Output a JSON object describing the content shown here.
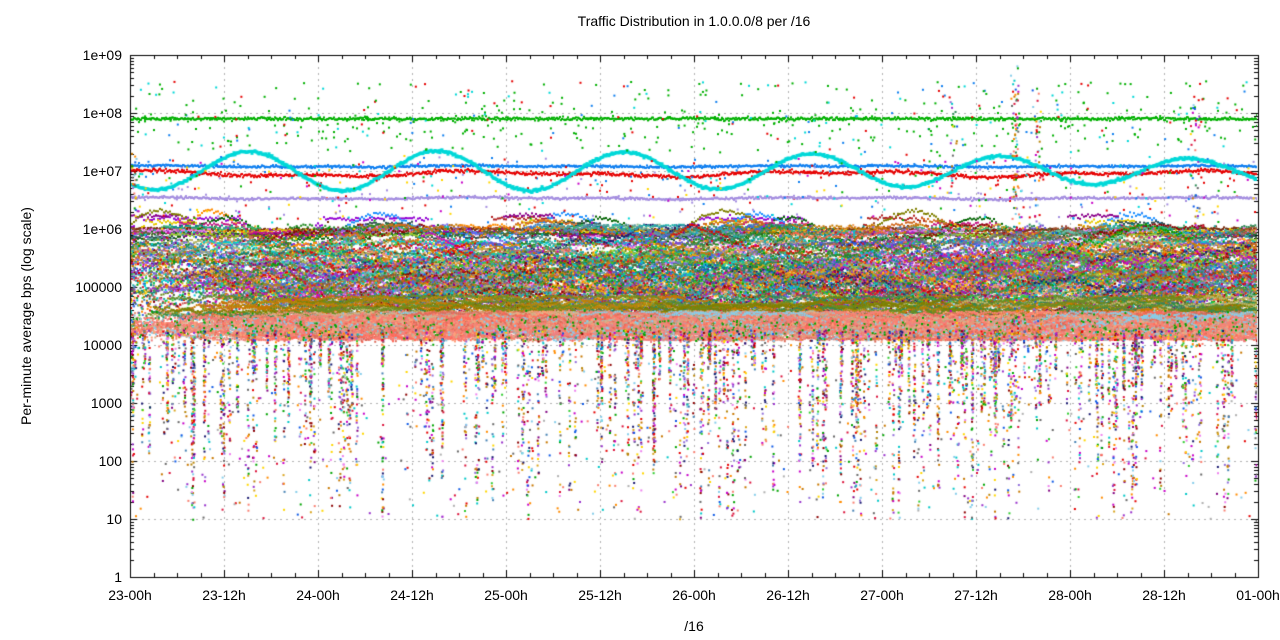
{
  "chart_data": {
    "type": "scatter",
    "title": "Traffic Distribution in 1.0.0.0/8 per /16",
    "xlabel": "/16",
    "ylabel": "Per-minute average bps (log scale)",
    "y_scale": "log",
    "ylim": [
      1,
      1000000000
    ],
    "y_ticks": [
      "1e+09",
      "1e+08",
      "1e+07",
      "1e+06",
      "100000",
      "10000",
      "1000",
      "100",
      "10",
      "1"
    ],
    "y_tick_exponents": [
      9,
      8,
      7,
      6,
      5,
      4,
      3,
      2,
      1,
      0
    ],
    "x_ticks": [
      "23-00h",
      "23-12h",
      "24-00h",
      "24-12h",
      "25-00h",
      "25-12h",
      "26-00h",
      "26-12h",
      "27-00h",
      "27-12h",
      "28-00h",
      "28-12h",
      "01-00h"
    ],
    "x_minor_per_major": 4,
    "grid": true,
    "grid_color": "#b4b4b4",
    "border_color": "#000000",
    "background": "#ffffff",
    "legend": "none",
    "summary_levels_bps": {
      "steady_green_line": 80000000,
      "steady_blue_line": 12000000,
      "wandering_red_line": 9000000,
      "diurnal_cyan_wave_min": 5000000,
      "diurnal_cyan_wave_max": 22000000,
      "steady_purple_line": 3400000,
      "dense_band_range": [
        40000,
        1200000
      ],
      "salmon_band_center": 20000,
      "sparse_trails_range": [
        10,
        10000
      ]
    },
    "series": [
      {
        "name": "green-steady-80M",
        "kind": "hline",
        "level_log": 7.9,
        "jitter": 0.014,
        "wander": 0.0,
        "color": "#00b000",
        "size": 2,
        "fuzz_below": 0.06,
        "fuzz_depth": 0.4
      },
      {
        "name": "blue-steady-12M",
        "kind": "hline",
        "level_log": 7.08,
        "jitter": 0.011,
        "wander": 0.015,
        "color": "#0f7ff0",
        "size": 2,
        "fuzz_below": 0.02,
        "fuzz_depth": 0.3
      },
      {
        "name": "red-wander-9M",
        "kind": "hline",
        "level_log": 6.95,
        "jitter": 0.016,
        "wander": 0.06,
        "color": "#e60000",
        "size": 2,
        "fuzz_below": 0.04,
        "fuzz_depth": 0.5
      },
      {
        "name": "purple-steady-3.4M",
        "kind": "hline",
        "level_log": 6.53,
        "jitter": 0.011,
        "wander": 0.02,
        "color": "#a58fe0",
        "size": 2,
        "fuzz_below": 0.02,
        "fuzz_depth": 0.35
      },
      {
        "name": "maroon-steady-1M",
        "kind": "hline",
        "level_log": 5.99,
        "jitter": 0.013,
        "wander": 0.02,
        "color": "#7b3010",
        "size": 2,
        "fuzz_below": 0.02,
        "fuzz_depth": 0.3
      },
      {
        "name": "darkgreen-steady-850k",
        "kind": "hline",
        "level_log": 5.92,
        "jitter": 0.013,
        "wander": 0.02,
        "color": "#1a6b1a",
        "size": 2,
        "fuzz_below": 0.02,
        "fuzz_depth": 0.3
      },
      {
        "name": "cyan-diurnal-wave",
        "kind": "wave",
        "center_log": 7.0,
        "amp_log": 0.31,
        "clip_high_log": 7.35,
        "period_frac": 0.1667,
        "phase": 0.62,
        "jitter": 0.012,
        "color": "#00d8d8",
        "size": 3
      },
      {
        "name": "upper-step-series",
        "kind": "steps",
        "count": 11,
        "base_log_range": [
          5.78,
          6.02
        ],
        "peak_log_range": [
          6.08,
          6.33
        ],
        "day_active_prob": 0.55,
        "period_frac": 0.1667,
        "palette": [
          "#9400d3",
          "#b22222",
          "#e6c800",
          "#ff8c00",
          "#006400",
          "#1e90ff",
          "#8b008b",
          "#c71585",
          "#2f4f4f",
          "#808000",
          "#d2691e"
        ]
      },
      {
        "name": "band-step-series",
        "kind": "steps",
        "count": 26,
        "base_log_range": [
          4.85,
          5.75
        ],
        "peak_log_range": [
          5.35,
          6.05
        ],
        "day_active_prob": 0.85,
        "period_frac": 0.1667,
        "palette": [
          "#9932cc",
          "#228b22",
          "#4169e1",
          "#20b2aa",
          "#ff8c00",
          "#b8860b",
          "#dc143c",
          "#008b8b",
          "#9370db",
          "#556b2f",
          "#800080",
          "#2e8b57",
          "#cd5c5c",
          "#4682b4",
          "#daa520",
          "#5f9ea0",
          "#7b68ee",
          "#3cb371",
          "#bdb76b",
          "#e9967a",
          "#66cdaa",
          "#9acd32",
          "#ee82ee",
          "#00ced1",
          "#6a5acd",
          "#a0522d"
        ]
      },
      {
        "name": "band-noise-walkers",
        "kind": "walkers",
        "count": 430,
        "center_log": 5.12,
        "sigma": 0.4,
        "clip": [
          4.28,
          6.08
        ],
        "step": 0.05,
        "len_range": [
          40,
          120
        ],
        "palette": [
          "#e60000",
          "#00a400",
          "#0f5ae6",
          "#c800c8",
          "#00c8c8",
          "#c87800",
          "#8b0000",
          "#228b22",
          "#4169e1",
          "#9932cc",
          "#20b2aa",
          "#ff8c00",
          "#b8860b",
          "#6b8e23",
          "#dc143c",
          "#008b8b",
          "#9370db",
          "#556b2f",
          "#800080",
          "#2e8b57",
          "#cd5c5c",
          "#4682b4",
          "#d2691e",
          "#daa520",
          "#5f9ea0",
          "#7b68ee",
          "#ff6347",
          "#3cb371",
          "#bdb76b",
          "#8fbc8f",
          "#66cdaa",
          "#9acd32",
          "#f4a460",
          "#778899",
          "#ee82ee",
          "#00ced1",
          "#ffa500",
          "#6a5acd",
          "#a0522d",
          "#708090",
          "#32cd32",
          "#b22222",
          "#191970",
          "#696969"
        ]
      },
      {
        "name": "band-noise-cloud",
        "kind": "cloud",
        "count": 9000,
        "center_log": 5.1,
        "sigma": 0.45,
        "clip": [
          4.3,
          6.05
        ],
        "palette": [
          "#e60000",
          "#00a400",
          "#0f5ae6",
          "#c800c8",
          "#00c8c8",
          "#c87800",
          "#8b0000",
          "#228b22",
          "#4169e1",
          "#9932cc",
          "#20b2aa",
          "#ff8c00",
          "#b8860b",
          "#6b8e23",
          "#dc143c",
          "#008b8b",
          "#9370db",
          "#556b2f",
          "#800080",
          "#2e8b57",
          "#cd5c5c",
          "#4682b4",
          "#d2691e",
          "#daa520",
          "#ee82ee",
          "#00ced1",
          "#32cd32",
          "#ffd700"
        ]
      },
      {
        "name": "olive-streak-band",
        "kind": "walkers",
        "count": 90,
        "center_log": 4.62,
        "sigma": 0.08,
        "clip": [
          4.45,
          4.85
        ],
        "step": 0.03,
        "len_range": [
          60,
          160
        ],
        "palette": [
          "#b8860b",
          "#bdb76b",
          "#808000",
          "#6b8e23",
          "#c87800",
          "#2e8b57"
        ]
      },
      {
        "name": "salmon-band-walkers",
        "kind": "walkers",
        "count": 280,
        "center_log": 4.32,
        "sigma": 0.1,
        "clip": [
          4.08,
          4.58
        ],
        "step": 0.03,
        "len_range": [
          60,
          160
        ],
        "palette": [
          "#fa8072",
          "#fa8072",
          "#fa8072",
          "#f08080",
          "#e9967a",
          "#ff6a5a",
          "#87ceeb",
          "#87ceeb",
          "#d2b48c",
          "#dc6b5a",
          "#ffa07a",
          "#a9a9a9"
        ]
      },
      {
        "name": "salmon-band-cloud",
        "kind": "cloud",
        "count": 6000,
        "center_log": 4.3,
        "sigma": 0.11,
        "clip": [
          4.05,
          4.6
        ],
        "palette": [
          "#fa8072",
          "#fa8072",
          "#f08080",
          "#e9967a",
          "#87ceeb",
          "#d2b48c",
          "#ff6a5a",
          "#dc6b5a",
          "#00a400",
          "#ffa07a"
        ]
      },
      {
        "name": "downward-trails",
        "kind": "trails",
        "count": 280,
        "top_log": 4.25,
        "min_log": 0.95,
        "points_range": [
          8,
          42
        ],
        "palette": [
          "#e60000",
          "#00a400",
          "#0f5ae6",
          "#c800c8",
          "#00c8c8",
          "#c87800",
          "#8b0000",
          "#9932cc",
          "#ff8c00",
          "#b8860b",
          "#dc143c",
          "#9370db",
          "#800080",
          "#4682b4",
          "#daa520",
          "#ee82ee",
          "#32cd32",
          "#ffd700",
          "#191970",
          "#696969",
          "#87ceeb",
          "#fa8072"
        ]
      },
      {
        "name": "low-sparse-dots",
        "kind": "sparse",
        "count": 620,
        "log_min": 1.0,
        "log_max": 4.1,
        "palette": [
          "#e60000",
          "#00a400",
          "#0f5ae6",
          "#c800c8",
          "#00c8c8",
          "#c87800",
          "#9932cc",
          "#ff8c00",
          "#dc143c",
          "#87ceeb",
          "#ffd700",
          "#696969",
          "#b0b0b0",
          "#fa8072"
        ]
      },
      {
        "name": "top-sparse-dots",
        "kind": "sparse",
        "count": 430,
        "log_min": 7.32,
        "log_max": 8.55,
        "palette": [
          "#00b000",
          "#00b000",
          "#00b000",
          "#00b000",
          "#00b000",
          "#00d8d8",
          "#e60000",
          "#0f7ff0"
        ]
      },
      {
        "name": "mid-gap-sparse-dots",
        "kind": "sparse",
        "count": 330,
        "log_min": 6.1,
        "log_max": 7.3,
        "palette": [
          "#e60000",
          "#00b000",
          "#0f7ff0",
          "#00d8d8",
          "#a58fe0",
          "#c800c8",
          "#ffd700"
        ]
      },
      {
        "name": "glitch-columns",
        "kind": "glitch",
        "columns": [
          {
            "x_frac": 0.003,
            "strength": 0.5,
            "log_min": 3.6,
            "log_max": 7.3
          },
          {
            "x_frac": 0.73,
            "strength": 0.35,
            "log_min": 3.0,
            "log_max": 8.2
          },
          {
            "x_frac": 0.785,
            "strength": 1.0,
            "log_min": 2.8,
            "log_max": 8.9
          },
          {
            "x_frac": 0.805,
            "strength": 0.55,
            "log_min": 3.0,
            "log_max": 8.5
          },
          {
            "x_frac": 0.945,
            "strength": 0.4,
            "log_min": 3.0,
            "log_max": 8.3
          }
        ],
        "palette": [
          "#e60000",
          "#00a400",
          "#0f5ae6",
          "#c800c8",
          "#00c8c8",
          "#c87800",
          "#9932cc",
          "#ff8c00",
          "#b8860b",
          "#dc143c",
          "#9370db",
          "#87ceeb",
          "#fa8072",
          "#ffd700",
          "#696969",
          "#2e8b57"
        ]
      }
    ]
  }
}
